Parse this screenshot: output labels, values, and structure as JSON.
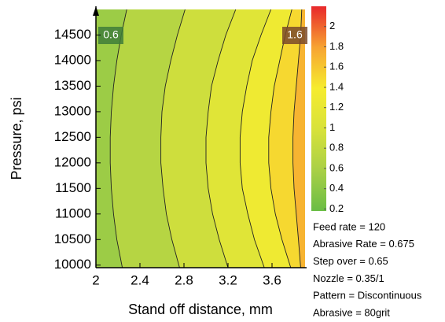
{
  "chart_data": {
    "type": "contour",
    "x_label": "Stand off distance, mm",
    "y_label": "Pressure, psi",
    "xlim": [
      2,
      3.9
    ],
    "xticks": [
      2,
      2.4,
      2.8,
      3.2,
      3.6
    ],
    "ylim": [
      9950,
      15000
    ],
    "yticks": [
      10000,
      10500,
      11000,
      11500,
      12000,
      12500,
      13000,
      13500,
      14000,
      14500
    ],
    "zlim": [
      0.18,
      2.2
    ],
    "zticks": [
      0.2,
      0.4,
      0.6,
      0.8,
      1,
      1.2,
      1.4,
      1.6,
      1.8,
      2
    ],
    "colormap": [
      "#6abd45",
      "#a9d046",
      "#d8e23a",
      "#f6ec2f",
      "#f7a332",
      "#e8282b"
    ],
    "contour_y": [
      9950,
      10500,
      11000,
      11500,
      12000,
      12300,
      12500,
      13000,
      13500,
      14000,
      14500,
      15000
    ],
    "contours": [
      {
        "level": 0.6,
        "x": [
          2.24,
          2.19,
          2.16,
          2.14,
          2.13,
          2.13,
          2.13,
          2.14,
          2.16,
          2.19,
          2.23,
          2.28
        ]
      },
      {
        "level": 0.8,
        "x": [
          2.76,
          2.69,
          2.64,
          2.61,
          2.59,
          2.59,
          2.59,
          2.6,
          2.63,
          2.68,
          2.74,
          2.81
        ]
      },
      {
        "level": 1,
        "x": [
          3.2,
          3.12,
          3.06,
          3.02,
          3.0,
          3.0,
          3.0,
          3.02,
          3.05,
          3.11,
          3.18,
          3.27
        ]
      },
      {
        "level": 1.2,
        "x": [
          3.53,
          3.44,
          3.38,
          3.33,
          3.31,
          3.31,
          3.31,
          3.33,
          3.37,
          3.42,
          3.5,
          3.59
        ]
      },
      {
        "level": 1.4,
        "x": [
          3.77,
          3.69,
          3.63,
          3.59,
          3.57,
          3.57,
          3.57,
          3.59,
          3.62,
          3.67,
          3.72,
          3.78
        ]
      },
      {
        "level": 1.6,
        "x": [
          3.86,
          3.84,
          3.82,
          3.8,
          3.79,
          3.79,
          3.79,
          3.8,
          3.82,
          3.84,
          3.86,
          3.87
        ]
      }
    ],
    "annotations": [
      "Feed rate = 120",
      "Abrasive Rate = 0.675",
      "Step over = 0.65",
      "Nozzle = 0.35/1",
      "Pattern = Discontinuous",
      "Abrasive = 80grit"
    ]
  }
}
